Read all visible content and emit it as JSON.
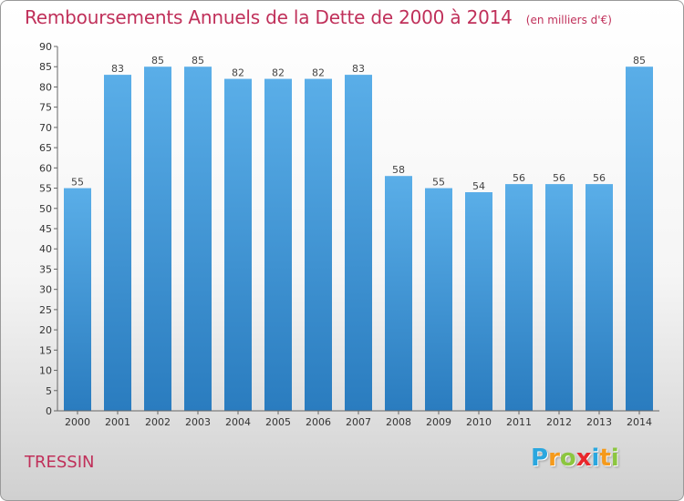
{
  "header": {
    "title": "Remboursements Annuels de la Dette de 2000 à 2014",
    "unit": "(en milliers d'€)"
  },
  "footer": {
    "place": "TRESSIN",
    "logo": {
      "letters": [
        "P",
        "r",
        "o",
        "x",
        "i",
        "t",
        "i"
      ],
      "colors": [
        "#2aa7df",
        "#f59a1b",
        "#8cc63f",
        "#e9262b",
        "#2aa7df",
        "#f59a1b",
        "#8cc63f"
      ]
    }
  },
  "chart_data": {
    "type": "bar",
    "title": "Remboursements Annuels de la Dette de 2000 à 2014",
    "categories": [
      "2000",
      "2001",
      "2002",
      "2003",
      "2004",
      "2005",
      "2006",
      "2007",
      "2008",
      "2009",
      "2010",
      "2011",
      "2012",
      "2013",
      "2014"
    ],
    "values": [
      55,
      83,
      85,
      85,
      82,
      82,
      82,
      83,
      58,
      55,
      54,
      56,
      56,
      56,
      85
    ],
    "ylim": [
      0,
      90
    ],
    "ytick_step": 5,
    "grid": false,
    "bar_color_top": "#5aaee8",
    "bar_color_bottom": "#2a7cbf",
    "axis_color": "#666666",
    "text_color": "#c0305a"
  }
}
